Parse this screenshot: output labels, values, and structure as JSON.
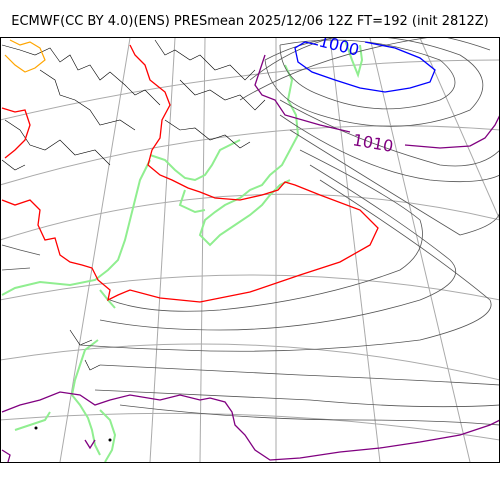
{
  "title": "ECMWF(CC BY 4.0)(ENS) PRESmean 2025/12/06 12Z FT=192 (init 2812Z)",
  "isobar_labels": {
    "low": "1000",
    "mid": "1010"
  },
  "colors": {
    "isobar_1000": "#0000ff",
    "isobar_1010": "#800080",
    "isobar_1020": "#ff0000",
    "isobar_other": "#000000",
    "graticule": "#aaaaaa",
    "coastline": "#90ee90",
    "warm_contour": "#ffa500"
  }
}
